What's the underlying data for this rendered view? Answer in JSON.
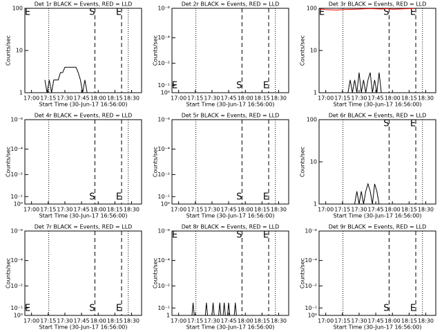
{
  "chart_data": [
    {
      "type": "line",
      "title": "Det 1r BLACK = Events, RED = LLD",
      "ylabel": "Counts/sec",
      "xlabel": "Start Time (30-Jun-17 16:56:00)",
      "log_y": true,
      "xlim": [
        -6,
        99
      ],
      "ylim": [
        1,
        100
      ],
      "xticks": [
        {
          "value": 0,
          "label": "17:00"
        },
        {
          "value": 15,
          "label": "17:15"
        },
        {
          "value": 30,
          "label": "17:30"
        },
        {
          "value": 45,
          "label": "17:45"
        },
        {
          "value": 60,
          "label": "18:00"
        },
        {
          "value": 75,
          "label": "18:15"
        },
        {
          "value": 90,
          "label": "18:30"
        }
      ],
      "yticks": [
        1,
        10,
        100
      ],
      "dotted": [
        15.5,
        87
      ],
      "markers": [
        {
          "label": "S",
          "x": 57
        },
        {
          "label": "E",
          "x": 81
        }
      ],
      "corner_label": "E",
      "series": [
        {
          "color": "#000000",
          "x": [
            12,
            14,
            16,
            18,
            20,
            22,
            24,
            26,
            28,
            30,
            32,
            34,
            36,
            38,
            40,
            42,
            44,
            46,
            48,
            50,
            52
          ],
          "values": [
            2,
            1,
            2,
            1,
            2,
            2,
            2,
            3,
            3,
            4,
            4,
            4,
            4,
            4,
            4,
            3,
            2,
            1,
            2,
            1,
            1
          ]
        }
      ]
    },
    {
      "type": "line",
      "title": "Det 2r BLACK = Events, RED = LLD",
      "ylabel": "Counts/sec",
      "xlabel": "Start Time (30-Jun-17 16:56:00)",
      "log_y": true,
      "xlim": [
        -6,
        99
      ],
      "ylim": [
        1,
        100
      ],
      "xticks": [
        {
          "value": 0,
          "label": "17:00"
        },
        {
          "value": 15,
          "label": "17:15"
        },
        {
          "value": 30,
          "label": "17:30"
        },
        {
          "value": 45,
          "label": "17:45"
        },
        {
          "value": 60,
          "label": "18:00"
        },
        {
          "value": 75,
          "label": "18:15"
        },
        {
          "value": 90,
          "label": "18:30"
        }
      ],
      "yticks": [
        {
          "value": 1,
          "label": "10⁰"
        },
        {
          "value": 1.5,
          "label": "10⁻¹"
        },
        {
          "value": 5,
          "label": "10⁻²"
        },
        {
          "value": 20,
          "label": "10⁻⁴"
        },
        {
          "value": 100,
          "label": "10⁻⁶"
        }
      ],
      "dotted": [
        15.5,
        87
      ],
      "markers": [
        {
          "label": "S",
          "x": 57
        },
        {
          "label": "E",
          "x": 81
        }
      ],
      "corner_label": "E",
      "series": []
    },
    {
      "type": "line",
      "title": "Det 3r BLACK = Events, RED = LLD",
      "ylabel": "Counts/sec",
      "xlabel": "Start Time (30-Jun-17 16:56:00)",
      "log_y": true,
      "xlim": [
        -6,
        99
      ],
      "ylim": [
        1,
        100
      ],
      "xticks": [
        {
          "value": 0,
          "label": "17:00"
        },
        {
          "value": 15,
          "label": "17:15"
        },
        {
          "value": 30,
          "label": "17:30"
        },
        {
          "value": 45,
          "label": "17:45"
        },
        {
          "value": 60,
          "label": "18:00"
        },
        {
          "value": 75,
          "label": "18:15"
        },
        {
          "value": 90,
          "label": "18:30"
        }
      ],
      "yticks": [
        1,
        10,
        100
      ],
      "dotted": [
        15.5,
        87
      ],
      "markers": [
        {
          "label": "S",
          "x": 57
        },
        {
          "label": "E",
          "x": 81
        }
      ],
      "corner_label": "E",
      "series": [
        {
          "color": "#000000",
          "x": [
            20,
            22,
            24,
            26,
            28,
            30,
            32,
            34,
            36,
            38,
            40,
            42,
            44,
            46,
            48,
            50,
            52
          ],
          "values": [
            1,
            2,
            1,
            2,
            1,
            3,
            1,
            2,
            1,
            2,
            3,
            1,
            2,
            1,
            3,
            1,
            1
          ]
        },
        {
          "color": "#ff0000",
          "x": [
            -5,
            0,
            5,
            10,
            15,
            20,
            25,
            30,
            35,
            40,
            45,
            50,
            55,
            60,
            65,
            70,
            75,
            80
          ],
          "values": [
            96,
            93,
            92,
            91,
            93,
            94,
            95,
            96,
            97,
            98,
            97,
            96,
            98,
            95,
            96,
            97,
            98,
            99
          ]
        }
      ]
    },
    {
      "type": "line",
      "title": "Det 4r BLACK = Events, RED = LLD",
      "ylabel": "Counts/sec",
      "xlabel": "Start Time (30-Jun-17 16:56:00)",
      "log_y": true,
      "xlim": [
        -6,
        99
      ],
      "ylim": [
        1,
        100
      ],
      "xticks": [
        {
          "value": 0,
          "label": "17:00"
        },
        {
          "value": 15,
          "label": "17:15"
        },
        {
          "value": 30,
          "label": "17:30"
        },
        {
          "value": 45,
          "label": "17:45"
        },
        {
          "value": 60,
          "label": "18:00"
        },
        {
          "value": 75,
          "label": "18:15"
        },
        {
          "value": 90,
          "label": "18:30"
        }
      ],
      "yticks": [
        {
          "value": 1,
          "label": "10⁰"
        },
        {
          "value": 1.5,
          "label": "10⁻¹"
        },
        {
          "value": 5,
          "label": "10⁻²"
        },
        {
          "value": 20,
          "label": "10⁻⁴"
        },
        {
          "value": 100,
          "label": "10⁻⁶"
        }
      ],
      "dotted": [
        15.5,
        87
      ],
      "markers": [
        {
          "label": "S",
          "x": 57
        },
        {
          "label": "E",
          "x": 81
        }
      ],
      "series": []
    },
    {
      "type": "line",
      "title": "Det 5r BLACK = Events, RED = LLD",
      "ylabel": "Counts/sec",
      "xlabel": "Start Time (30-Jun-17 16:56:00)",
      "log_y": true,
      "xlim": [
        -6,
        99
      ],
      "ylim": [
        1,
        100
      ],
      "xticks": [
        {
          "value": 0,
          "label": "17:00"
        },
        {
          "value": 15,
          "label": "17:15"
        },
        {
          "value": 30,
          "label": "17:30"
        },
        {
          "value": 45,
          "label": "17:45"
        },
        {
          "value": 60,
          "label": "18:00"
        },
        {
          "value": 75,
          "label": "18:15"
        },
        {
          "value": 90,
          "label": "18:30"
        }
      ],
      "yticks": [
        {
          "value": 1,
          "label": "10⁰"
        },
        {
          "value": 1.5,
          "label": "10⁻¹"
        },
        {
          "value": 5,
          "label": "10⁻²"
        },
        {
          "value": 20,
          "label": "10⁻⁴"
        },
        {
          "value": 100,
          "label": "10⁻⁶"
        }
      ],
      "dotted": [
        15.5,
        87
      ],
      "markers": [
        {
          "label": "S",
          "x": 57
        },
        {
          "label": "E",
          "x": 81
        }
      ],
      "series": []
    },
    {
      "type": "line",
      "title": "Det 6r BLACK = Events, RED = LLD",
      "ylabel": "Counts/sec",
      "xlabel": "Start Time (30-Jun-17 16:56:00)",
      "log_y": true,
      "xlim": [
        -6,
        99
      ],
      "ylim": [
        1,
        100
      ],
      "xticks": [
        {
          "value": 0,
          "label": "17:00"
        },
        {
          "value": 15,
          "label": "17:15"
        },
        {
          "value": 30,
          "label": "17:30"
        },
        {
          "value": 45,
          "label": "17:45"
        },
        {
          "value": 60,
          "label": "18:00"
        },
        {
          "value": 75,
          "label": "18:15"
        },
        {
          "value": 90,
          "label": "18:30"
        }
      ],
      "yticks": [
        1,
        10,
        100
      ],
      "dotted": [
        15.5,
        87
      ],
      "markers": [
        {
          "label": "S",
          "x": 57
        },
        {
          "label": "E",
          "x": 81
        }
      ],
      "series": [
        {
          "color": "#000000",
          "x": [
            26,
            28,
            30,
            32,
            34,
            36,
            38,
            40,
            42,
            44,
            46,
            48
          ],
          "values": [
            1,
            2,
            1,
            2,
            1,
            2,
            3,
            2,
            1,
            3,
            2,
            1
          ]
        }
      ]
    },
    {
      "type": "line",
      "title": "Det 7r BLACK = Events, RED = LLD",
      "ylabel": "Counts/sec",
      "xlabel": "Start Time (30-Jun-17 16:56:00)",
      "log_y": true,
      "xlim": [
        -6,
        99
      ],
      "ylim": [
        1,
        100
      ],
      "xticks": [
        {
          "value": 0,
          "label": "17:00"
        },
        {
          "value": 15,
          "label": "17:15"
        },
        {
          "value": 30,
          "label": "17:30"
        },
        {
          "value": 45,
          "label": "17:45"
        },
        {
          "value": 60,
          "label": "18:00"
        },
        {
          "value": 75,
          "label": "18:15"
        },
        {
          "value": 90,
          "label": "18:30"
        }
      ],
      "yticks": [
        {
          "value": 1,
          "label": "10⁰"
        },
        {
          "value": 1.5,
          "label": "10⁻¹"
        },
        {
          "value": 5,
          "label": "10⁻²"
        },
        {
          "value": 20,
          "label": "10⁻⁴"
        },
        {
          "value": 100,
          "label": "10⁻⁶"
        }
      ],
      "dotted": [
        15.5,
        87
      ],
      "markers": [
        {
          "label": "S",
          "x": 57
        },
        {
          "label": "E",
          "x": 81
        }
      ],
      "corner_label": "E",
      "series": []
    },
    {
      "type": "line",
      "title": "Det 8r BLACK = Events, RED = LLD",
      "ylabel": "Counts/sec",
      "xlabel": "Start Time (30-Jun-17 16:56:00)",
      "log_y": true,
      "xlim": [
        -6,
        99
      ],
      "ylim": [
        1,
        100
      ],
      "xticks": [
        {
          "value": 0,
          "label": "17:00"
        },
        {
          "value": 15,
          "label": "17:15"
        },
        {
          "value": 30,
          "label": "17:30"
        },
        {
          "value": 45,
          "label": "17:45"
        },
        {
          "value": 60,
          "label": "18:00"
        },
        {
          "value": 75,
          "label": "18:15"
        },
        {
          "value": 90,
          "label": "18:30"
        }
      ],
      "yticks": [
        1,
        {
          "value": 1.5,
          "label": "10⁻¹"
        },
        {
          "value": 5,
          "label": "10⁻²"
        },
        {
          "value": 20,
          "label": "10⁻⁴"
        },
        {
          "value": 100,
          "label": "10⁻⁶"
        }
      ],
      "dotted": [
        15.5,
        87
      ],
      "markers": [
        {
          "label": "S",
          "x": 57
        },
        {
          "label": "E",
          "x": 81
        }
      ],
      "corner_label": "E",
      "series": [
        {
          "color": "#000000",
          "x": [
            12,
            13,
            14,
            24,
            25,
            26,
            30,
            31,
            32,
            36,
            37,
            38,
            40,
            41,
            42,
            44,
            45,
            46,
            50,
            51,
            52
          ],
          "values": [
            1,
            2,
            1,
            1,
            2,
            1,
            1,
            2,
            1,
            1,
            2,
            1,
            1,
            2,
            1,
            1,
            2,
            1,
            1,
            2,
            1
          ]
        }
      ]
    },
    {
      "type": "line",
      "title": "Det 9r BLACK = Events, RED = LLD",
      "ylabel": "Counts/sec",
      "xlabel": "Start Time (30-Jun-17 16:56:00)",
      "log_y": true,
      "xlim": [
        -6,
        99
      ],
      "ylim": [
        1,
        100
      ],
      "xticks": [
        {
          "value": 0,
          "label": "17:00"
        },
        {
          "value": 15,
          "label": "17:15"
        },
        {
          "value": 30,
          "label": "17:30"
        },
        {
          "value": 45,
          "label": "17:45"
        },
        {
          "value": 60,
          "label": "18:00"
        },
        {
          "value": 75,
          "label": "18:15"
        },
        {
          "value": 90,
          "label": "18:30"
        }
      ],
      "yticks": [
        {
          "value": 1,
          "label": "10⁰"
        },
        {
          "value": 1.5,
          "label": "10⁻¹"
        },
        {
          "value": 5,
          "label": "10⁻²"
        },
        {
          "value": 20,
          "label": "10⁻⁴"
        },
        {
          "value": 100,
          "label": "10⁻⁶"
        }
      ],
      "dotted": [
        15.5,
        87
      ],
      "markers": [
        {
          "label": "S",
          "x": 57
        },
        {
          "label": "E",
          "x": 81
        }
      ],
      "series": []
    }
  ]
}
